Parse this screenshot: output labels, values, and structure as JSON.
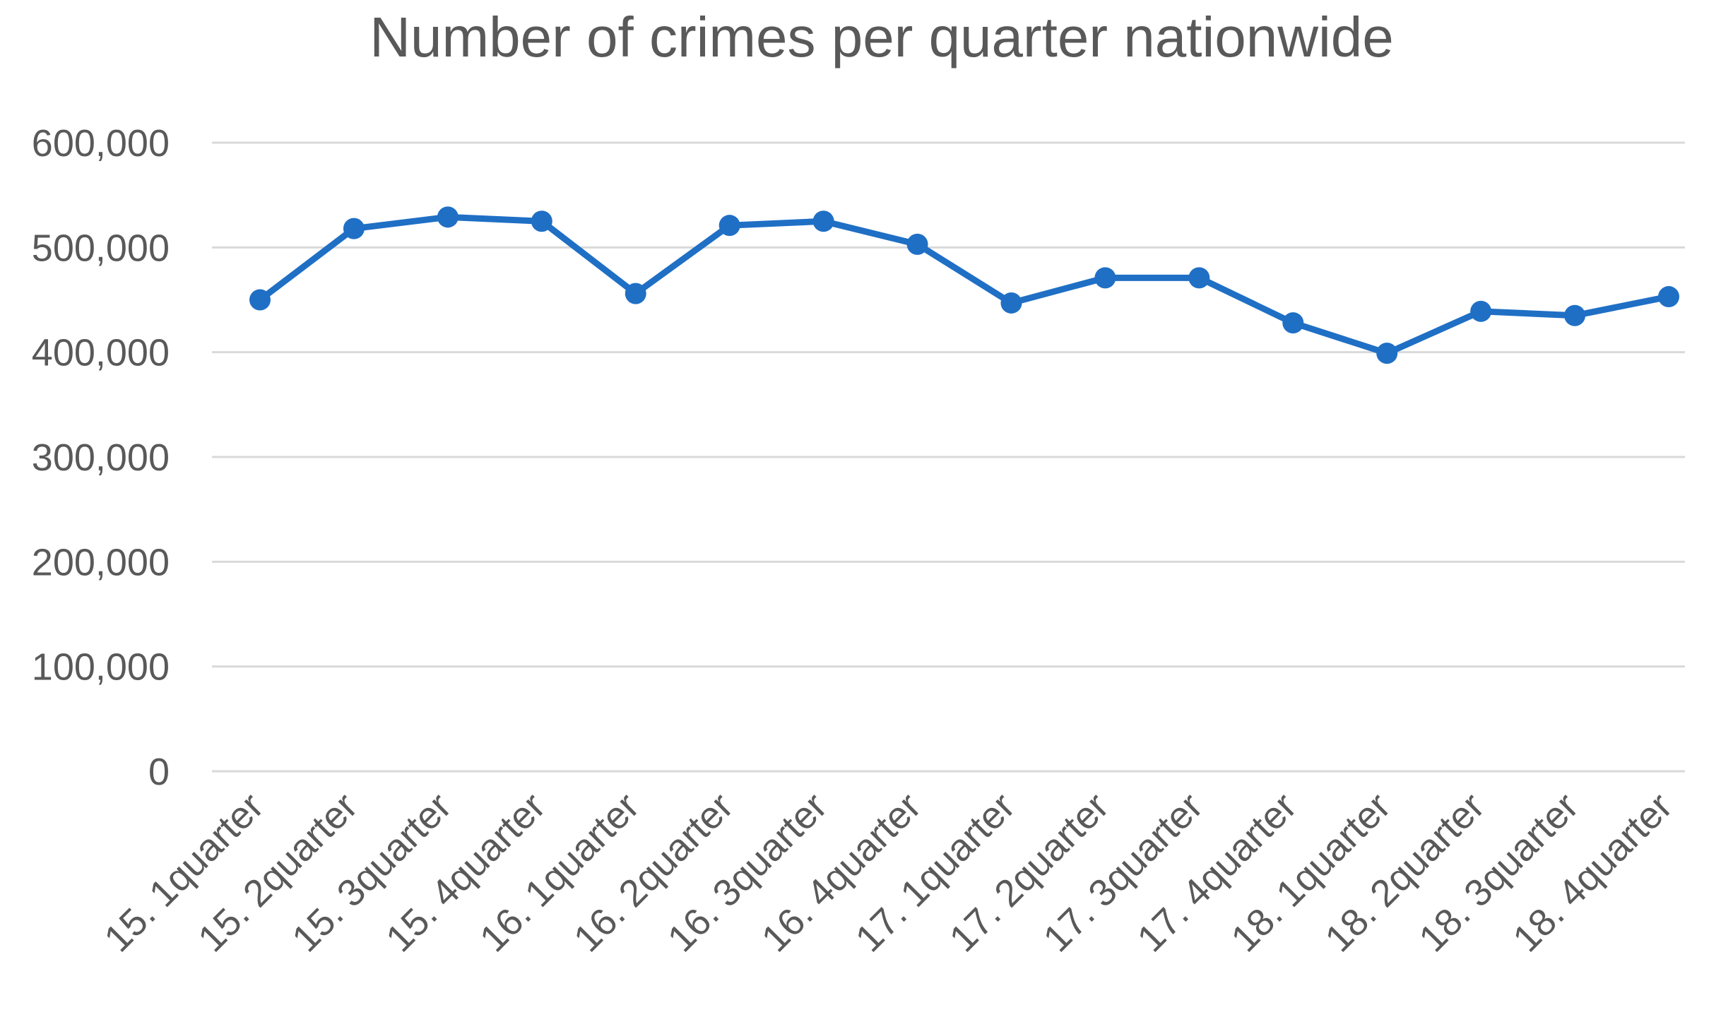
{
  "chart_data": {
    "type": "line",
    "title": "Number of crimes per quarter nationwide",
    "xlabel": "",
    "ylabel": "",
    "ylim": [
      0,
      600000
    ],
    "y_ticks": [
      0,
      100000,
      200000,
      300000,
      400000,
      500000,
      600000
    ],
    "y_tick_labels": [
      "0",
      "100,000",
      "200,000",
      "300,000",
      "400,000",
      "500,000",
      "600,000"
    ],
    "grid": true,
    "legend": "none",
    "categories": [
      "15. 1quarter",
      "15. 2quarter",
      "15. 3quarter",
      "15. 4quarter",
      "16. 1quarter",
      "16. 2quarter",
      "16. 3quarter",
      "16. 4quarter",
      "17. 1quarter",
      "17. 2quarter",
      "17. 3quarter",
      "17. 4quarter",
      "18. 1quarter",
      "18. 2quarter",
      "18. 3quarter",
      "18. 4quarter"
    ],
    "series": [
      {
        "color": "#1f6fc5",
        "values": [
          450000,
          518000,
          529000,
          525000,
          456000,
          521000,
          525000,
          503000,
          447000,
          471000,
          471000,
          428000,
          399000,
          439000,
          435000,
          453000
        ]
      }
    ]
  }
}
